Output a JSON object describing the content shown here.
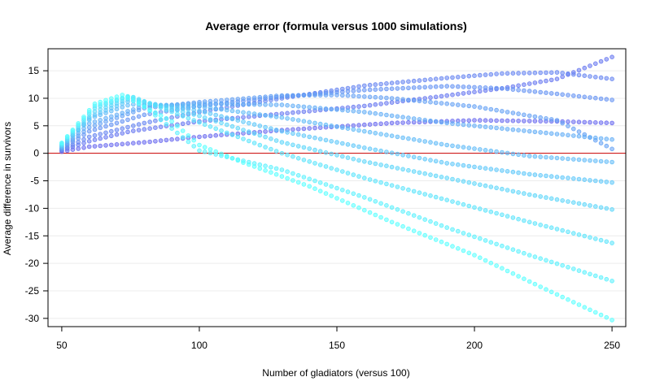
{
  "chart_data": {
    "type": "scatter",
    "title": "Average error (formula versus 1000 simulations)",
    "xlabel": "Number of gladiators (versus 100)",
    "ylabel": "Average difference in survivors",
    "xlim": [
      45,
      255
    ],
    "ylim": [
      -31.5,
      19
    ],
    "xticks": [
      50,
      100,
      150,
      200,
      250
    ],
    "yticks": [
      -30,
      -25,
      -20,
      -15,
      -10,
      -5,
      0,
      5,
      10,
      15
    ],
    "grid": true,
    "reference_line": {
      "y": 0,
      "color": "#cc0000"
    },
    "colors": {
      "dark": "#6666ee",
      "light": "#55ffff",
      "alpha": 0.55
    },
    "x_step": 2,
    "series": [
      {
        "x_range": [
          50,
          250
        ],
        "anchors": [
          [
            50,
            0.3
          ],
          [
            60,
            1.2
          ],
          [
            80,
            2.0
          ],
          [
            100,
            3.0
          ],
          [
            130,
            4.2
          ],
          [
            170,
            5.5
          ],
          [
            200,
            6.0
          ],
          [
            230,
            5.8
          ],
          [
            250,
            5.5
          ]
        ]
      },
      {
        "x_range": [
          50,
          250
        ],
        "anchors": [
          [
            50,
            0.5
          ],
          [
            60,
            2.2
          ],
          [
            75,
            4.0
          ],
          [
            100,
            5.8
          ],
          [
            130,
            7.2
          ],
          [
            160,
            8.6
          ],
          [
            190,
            10.5
          ],
          [
            210,
            11.8
          ],
          [
            230,
            13.5
          ],
          [
            250,
            17.5
          ]
        ]
      },
      {
        "x_range": [
          50,
          250
        ],
        "anchors": [
          [
            50,
            0.6
          ],
          [
            60,
            3.0
          ],
          [
            80,
            5.5
          ],
          [
            100,
            7.5
          ],
          [
            130,
            10.0
          ],
          [
            160,
            12.3
          ],
          [
            190,
            13.7
          ],
          [
            210,
            14.5
          ],
          [
            230,
            14.7
          ],
          [
            250,
            13.5
          ]
        ]
      },
      {
        "x_range": [
          50,
          250
        ],
        "anchors": [
          [
            50,
            0.8
          ],
          [
            60,
            4.0
          ],
          [
            80,
            7.0
          ],
          [
            100,
            8.6
          ],
          [
            130,
            10.3
          ],
          [
            160,
            11.5
          ],
          [
            190,
            12.2
          ],
          [
            210,
            11.8
          ],
          [
            230,
            10.8
          ],
          [
            250,
            9.7
          ]
        ]
      },
      {
        "x_range": [
          50,
          250
        ],
        "anchors": [
          [
            50,
            0.9
          ],
          [
            60,
            4.7
          ],
          [
            80,
            8.2
          ],
          [
            100,
            9.3
          ],
          [
            130,
            10.5
          ],
          [
            150,
            10.6
          ],
          [
            170,
            10.0
          ],
          [
            200,
            8.5
          ],
          [
            230,
            6.0
          ],
          [
            250,
            0.8
          ]
        ]
      },
      {
        "x_range": [
          50,
          250
        ],
        "anchors": [
          [
            50,
            1.0
          ],
          [
            60,
            5.4
          ],
          [
            80,
            8.6
          ],
          [
            100,
            9.0
          ],
          [
            130,
            8.8
          ],
          [
            160,
            7.5
          ],
          [
            190,
            5.5
          ],
          [
            220,
            4.0
          ],
          [
            250,
            2.5
          ]
        ]
      },
      {
        "x_range": [
          50,
          250
        ],
        "anchors": [
          [
            50,
            1.2
          ],
          [
            60,
            6.3
          ],
          [
            75,
            8.9
          ],
          [
            100,
            8.5
          ],
          [
            130,
            6.5
          ],
          [
            160,
            4.0
          ],
          [
            190,
            1.5
          ],
          [
            220,
            -0.5
          ],
          [
            250,
            -1.6
          ]
        ]
      },
      {
        "x_range": [
          50,
          250
        ],
        "anchors": [
          [
            50,
            1.3
          ],
          [
            62,
            7.0
          ],
          [
            75,
            9.6
          ],
          [
            100,
            7.7
          ],
          [
            130,
            4.0
          ],
          [
            160,
            1.0
          ],
          [
            190,
            -1.8
          ],
          [
            220,
            -3.8
          ],
          [
            250,
            -5.3
          ]
        ]
      },
      {
        "x_range": [
          50,
          250
        ],
        "anchors": [
          [
            50,
            1.5
          ],
          [
            62,
            7.6
          ],
          [
            75,
            10.0
          ],
          [
            100,
            6.8
          ],
          [
            130,
            2.0
          ],
          [
            160,
            -1.5
          ],
          [
            190,
            -4.5
          ],
          [
            220,
            -7.5
          ],
          [
            250,
            -10.2
          ]
        ]
      },
      {
        "x_range": [
          50,
          250
        ],
        "anchors": [
          [
            50,
            1.6
          ],
          [
            62,
            8.2
          ],
          [
            75,
            10.4
          ],
          [
            100,
            5.6
          ],
          [
            130,
            0.0
          ],
          [
            160,
            -4.5
          ],
          [
            190,
            -8.5
          ],
          [
            220,
            -12.5
          ],
          [
            250,
            -16.3
          ]
        ]
      },
      {
        "x_range": [
          50,
          250
        ],
        "anchors": [
          [
            50,
            1.8
          ],
          [
            62,
            8.6
          ],
          [
            75,
            10.5
          ],
          [
            100,
            0.5
          ],
          [
            130,
            -3.0
          ],
          [
            160,
            -8.0
          ],
          [
            190,
            -13.5
          ],
          [
            220,
            -18.5
          ],
          [
            250,
            -23.2
          ]
        ]
      },
      {
        "x_range": [
          50,
          250
        ],
        "anchors": [
          [
            50,
            1.9
          ],
          [
            62,
            9.0
          ],
          [
            72,
            10.6
          ],
          [
            90,
            5.8
          ],
          [
            100,
            1.5
          ],
          [
            115,
            -1.5
          ],
          [
            140,
            -6.0
          ],
          [
            170,
            -12.5
          ],
          [
            200,
            -18.5
          ],
          [
            225,
            -24.5
          ],
          [
            250,
            -30.3
          ]
        ]
      }
    ]
  }
}
